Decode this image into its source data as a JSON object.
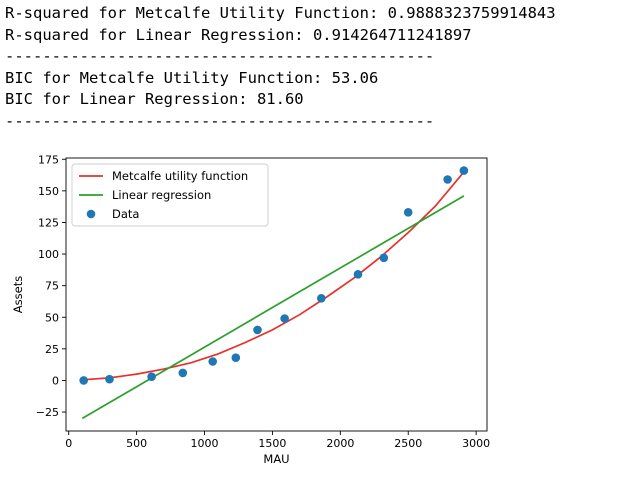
{
  "output": {
    "lines": [
      "R-squared for Metcalfe Utility Function: 0.9888323759914843",
      "R-squared for Linear Regression: 0.914264711241897",
      "----------------------------------------------",
      "BIC for Metcalfe Utility Function: 53.06",
      "BIC for Linear Regression: 81.60",
      "----------------------------------------------"
    ]
  },
  "chart_data": {
    "type": "scatter",
    "title": "",
    "xlabel": "MAU",
    "ylabel": "Assets",
    "xlim": [
      -20,
      3080
    ],
    "ylim": [
      -40,
      176
    ],
    "x_ticks": [
      0,
      500,
      1000,
      1500,
      2000,
      2500,
      3000
    ],
    "y_ticks": [
      -25,
      0,
      25,
      50,
      75,
      100,
      125,
      150,
      175
    ],
    "x_tick_labels": [
      "0",
      "500",
      "1000",
      "1500",
      "2000",
      "2500",
      "3000"
    ],
    "y_tick_labels": [
      "−25",
      "0",
      "25",
      "50",
      "75",
      "100",
      "125",
      "150",
      "175"
    ],
    "grid": false,
    "legend_position": "upper-left",
    "series": [
      {
        "name": "Metcalfe utility function",
        "kind": "line",
        "color": "#e8312a",
        "x": [
          100,
          300,
          500,
          700,
          900,
          1100,
          1300,
          1500,
          1700,
          1900,
          2100,
          2300,
          2500,
          2700,
          2910
        ],
        "y": [
          0.5,
          2,
          5,
          9,
          14,
          21,
          30,
          40,
          52,
          66,
          81,
          98,
          117,
          138,
          165
        ]
      },
      {
        "name": "Linear regression",
        "kind": "line",
        "color": "#2ca02c",
        "x": [
          100,
          2910
        ],
        "y": [
          -30,
          146
        ]
      },
      {
        "name": "Data",
        "kind": "scatter",
        "color": "#1f77b4",
        "x": [
          110,
          300,
          610,
          840,
          1060,
          1230,
          1390,
          1590,
          1860,
          2130,
          2320,
          2500,
          2790,
          2910
        ],
        "y": [
          0,
          1,
          3,
          6,
          15,
          18,
          40,
          49,
          65,
          84,
          97,
          133,
          159,
          166
        ]
      }
    ]
  }
}
